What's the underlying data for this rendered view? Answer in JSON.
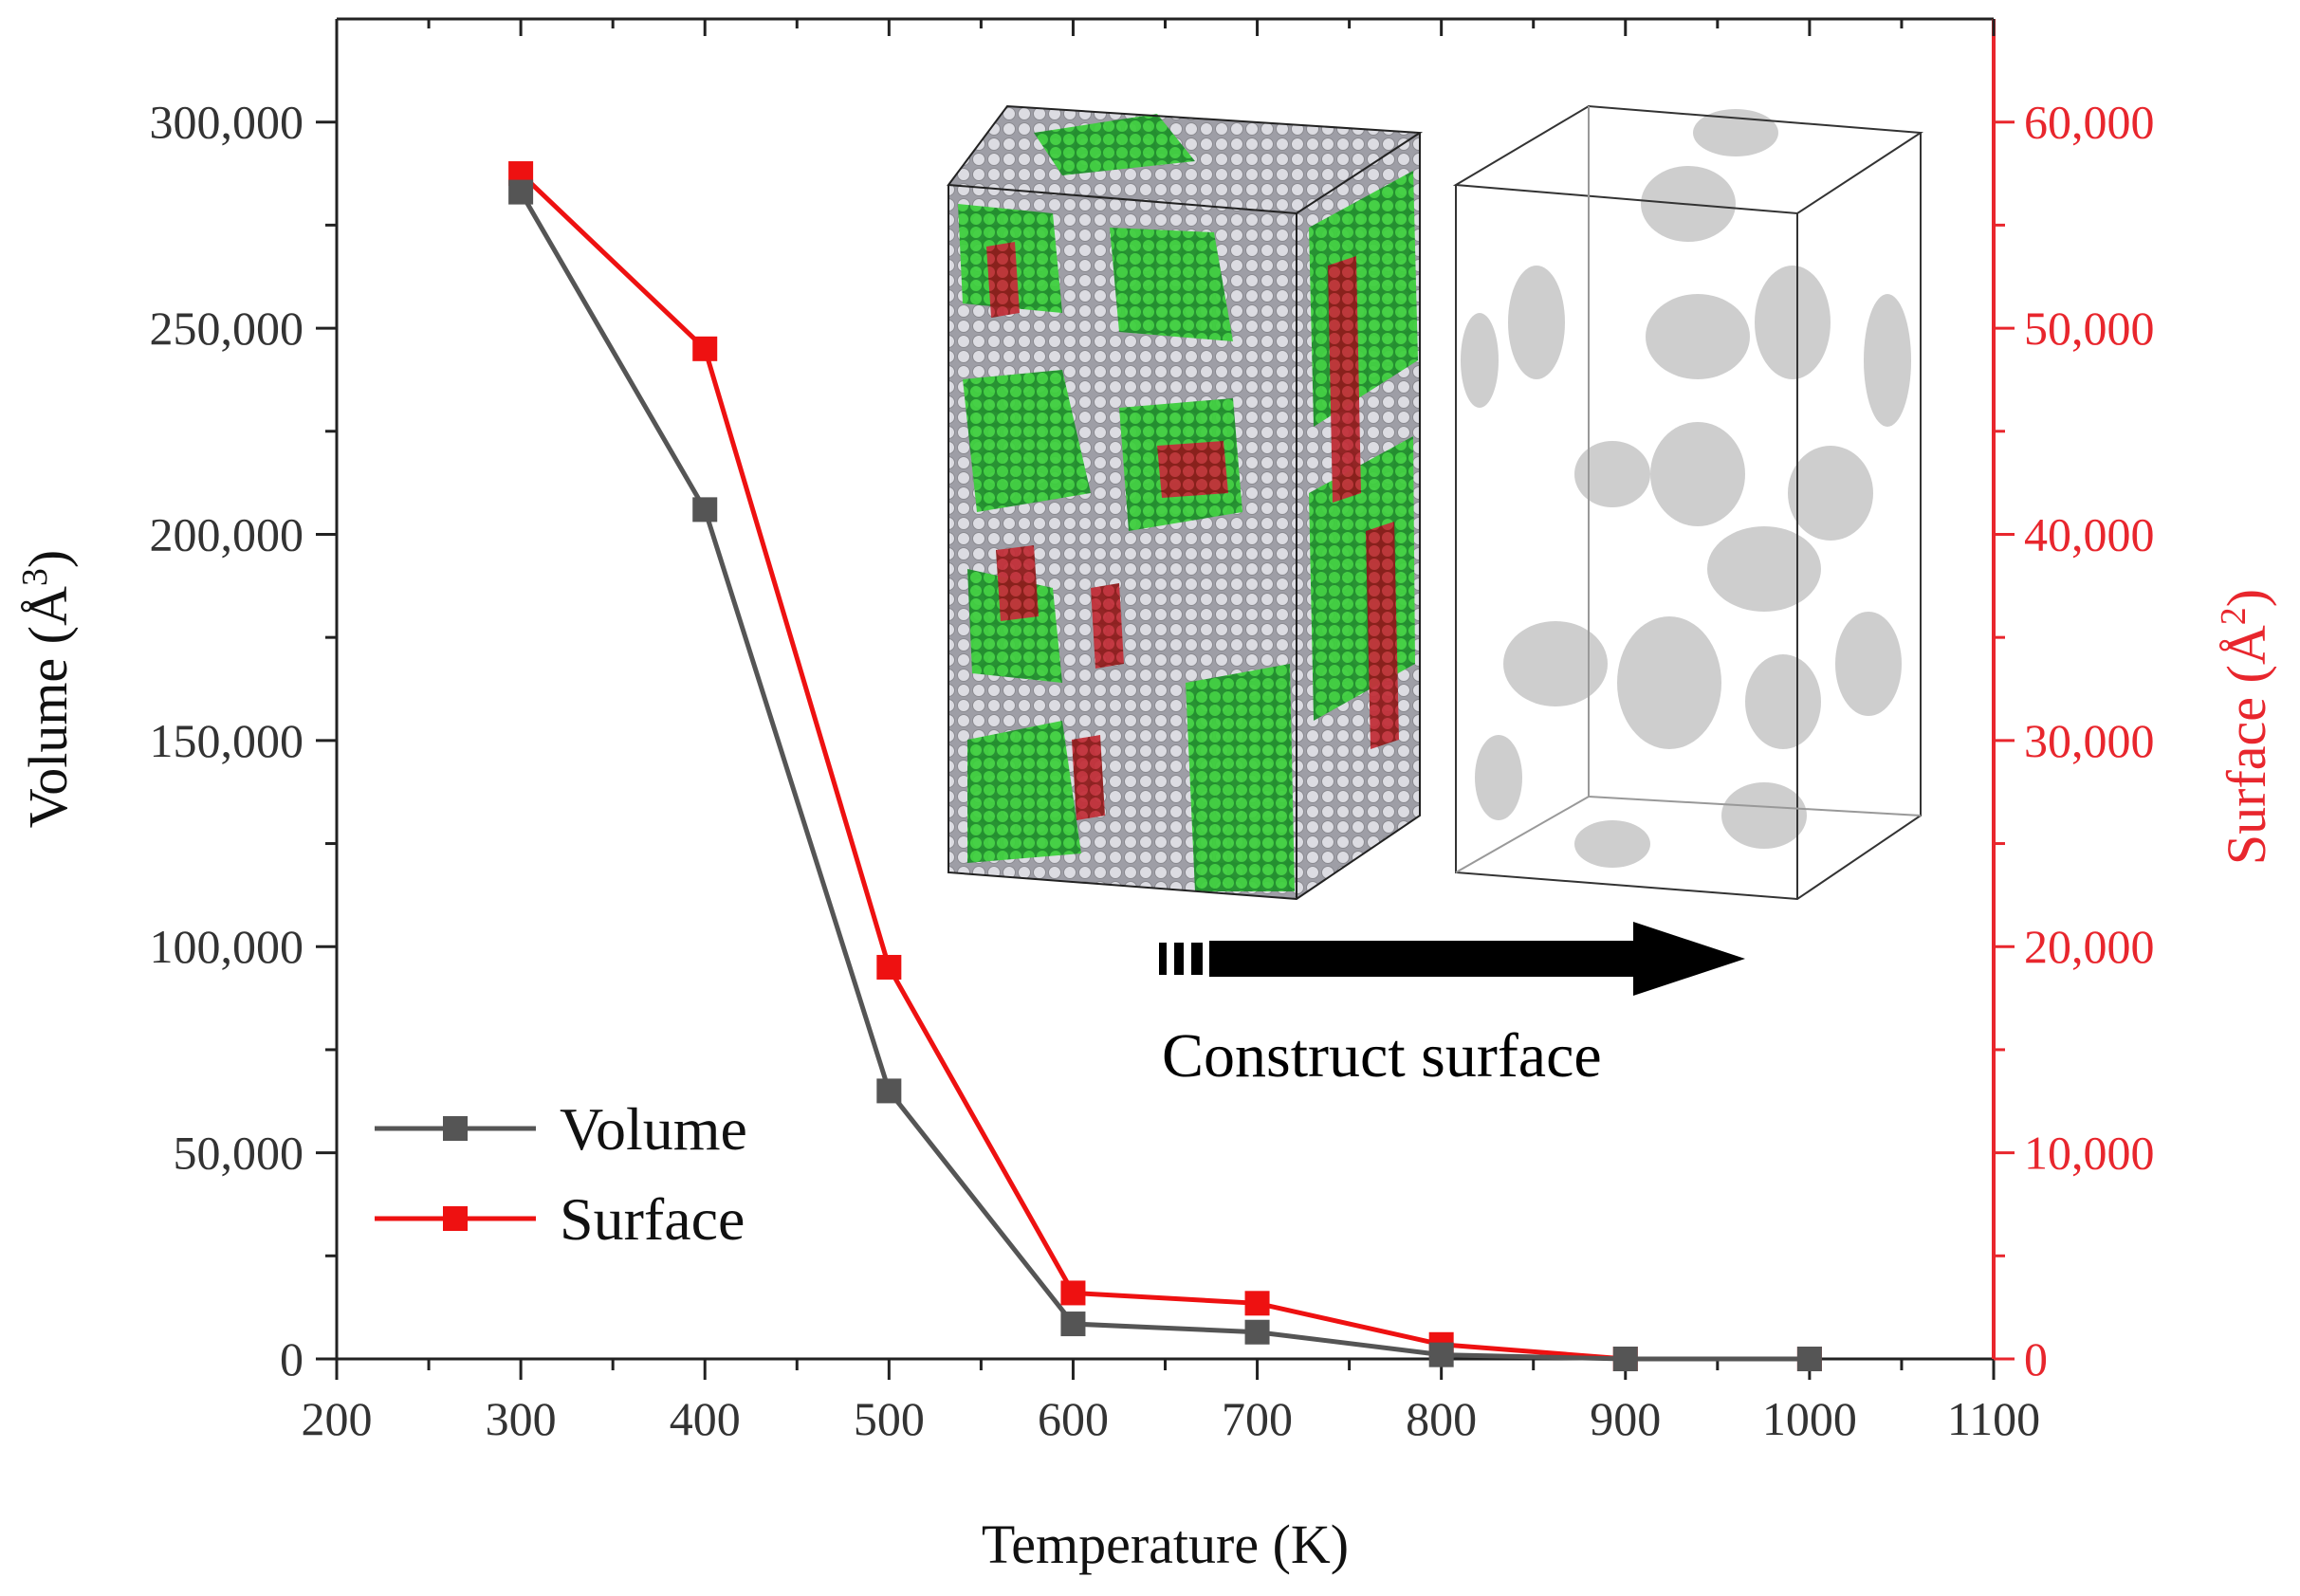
{
  "chart_data": {
    "type": "line",
    "x": [
      300,
      400,
      500,
      600,
      700,
      800,
      900,
      1000
    ],
    "xlabel": "Temperature (K)",
    "xlim": [
      200,
      1100
    ],
    "xticks": [
      "200",
      "300",
      "400",
      "500",
      "600",
      "700",
      "800",
      "900",
      "1000",
      "1100"
    ],
    "ylabel_left": "Volume (Å",
    "ylabel_left_sup": "3",
    "ylabel_right": "Surface (Å",
    "ylabel_right_sup": "2",
    "ylim_left": [
      0,
      325000
    ],
    "ylim_right": [
      0,
      65000
    ],
    "yticks_left": [
      "0",
      "50,000",
      "100,000",
      "150,000",
      "200,000",
      "250,000",
      "300,000"
    ],
    "yticks_right": [
      "0",
      "10,000",
      "20,000",
      "30,000",
      "40,000",
      "50,000",
      "60,000"
    ],
    "series": [
      {
        "name": "Volume",
        "axis": "left",
        "color": "#555555",
        "values": [
          283000,
          206000,
          65000,
          8500,
          6500,
          1000,
          0,
          0
        ]
      },
      {
        "name": "Surface",
        "axis": "right",
        "color": "#ee1111",
        "values": [
          57500,
          49000,
          19000,
          3200,
          2700,
          700,
          0,
          0
        ]
      }
    ],
    "legend_position": "bottom-left",
    "annotation": "Construct surface",
    "colors": {
      "axis_right": "#e8262d",
      "axis_left": "#333333"
    }
  }
}
